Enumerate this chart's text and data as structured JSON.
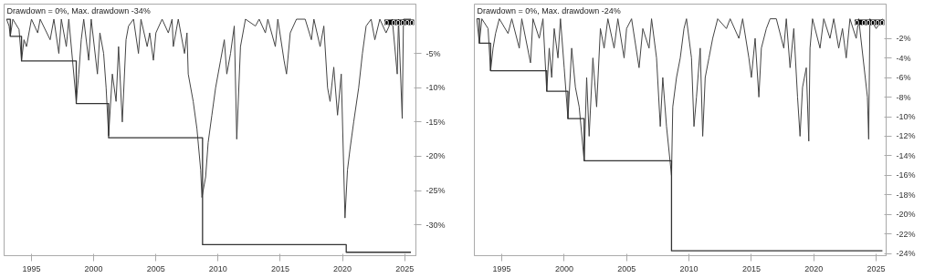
{
  "chart_data": [
    {
      "type": "line",
      "title": "Drawdown = 0%, Max. drawdown -34%",
      "xlim": [
        1992.8,
        2025.9
      ],
      "ylim": [
        -34.5,
        2.2
      ],
      "xticks": [
        1995,
        2000,
        2005,
        2010,
        2015,
        2020,
        2025
      ],
      "yticks": [
        {
          "value": -5,
          "label": "-5%"
        },
        {
          "value": -10,
          "label": "-10%"
        },
        {
          "value": -15,
          "label": "-15%"
        },
        {
          "value": -20,
          "label": "-20%"
        },
        {
          "value": -25,
          "label": "-25%"
        },
        {
          "value": -30,
          "label": "-30%"
        }
      ],
      "grid": false,
      "annotations": [
        "0.00000"
      ],
      "series": [
        {
          "color": "#444444",
          "x": [
            1993.0,
            1993.2,
            1993.3,
            1993.5,
            1994.0,
            1994.2,
            1994.4,
            1994.6,
            1995.0,
            1995.5,
            1995.7,
            1996.5,
            1996.8,
            1997.2,
            1997.4,
            1997.8,
            1998.0,
            1998.6,
            1998.8,
            1999.0,
            1999.2,
            1999.6,
            1999.8,
            2000.3,
            2000.5,
            2000.8,
            2001.0,
            2001.2,
            2001.5,
            2001.8,
            2002.0,
            2002.3,
            2002.6,
            2002.8,
            2003.2,
            2003.6,
            2003.8,
            2004.3,
            2004.5,
            2004.8,
            2005.0,
            2005.5,
            2006.0,
            2006.3,
            2006.4,
            2006.8,
            2007.3,
            2007.5,
            2007.6,
            2008.0,
            2008.3,
            2008.6,
            2008.7,
            2009.0,
            2009.2,
            2009.5,
            2009.8,
            2010.2,
            2010.5,
            2010.7,
            2011.0,
            2011.3,
            2011.5,
            2011.8,
            2012.2,
            2013.0,
            2013.3,
            2013.8,
            2014.0,
            2014.6,
            2014.8,
            2015.3,
            2015.5,
            2015.8,
            2016.3,
            2017.0,
            2017.5,
            2017.7,
            2018.2,
            2018.5,
            2018.8,
            2019.0,
            2019.3,
            2019.6,
            2019.9,
            2020.2,
            2020.4,
            2020.6,
            2020.9,
            2021.3,
            2021.6,
            2021.9,
            2022.3,
            2022.6,
            2023.0,
            2023.5,
            2024.0,
            2024.4,
            2024.5,
            2024.8,
            2024.9,
            2025.5
          ],
          "values": [
            0,
            -1,
            -2.5,
            0,
            -1.5,
            -6,
            -3,
            -4,
            0,
            -2,
            0,
            -3,
            0,
            -5,
            0,
            -4,
            0,
            -12,
            -8,
            -3,
            0,
            -6,
            0,
            -8,
            -2,
            -5,
            -10,
            -17,
            -8,
            -12,
            -4,
            -15,
            -3,
            -1,
            0,
            -5,
            0,
            -4,
            -2,
            -6,
            -2,
            0,
            -2,
            0,
            -4,
            0,
            -5,
            -2,
            -8,
            -12,
            -16,
            -22,
            -26,
            -23,
            -18,
            -14,
            -10,
            -6,
            -3,
            -8,
            -5,
            -1,
            -17.5,
            -4,
            0,
            -1,
            0,
            -2,
            0,
            -4,
            0,
            -6,
            -8,
            -2,
            0,
            0,
            -3,
            0,
            -4,
            -1,
            -10,
            -12,
            -7,
            -14,
            -8,
            -29,
            -22,
            -19,
            -15,
            -10,
            -5,
            -1,
            0,
            -3,
            0,
            -2,
            0,
            -8,
            0,
            -14.5,
            0,
            0
          ]
        },
        {
          "type": "step",
          "color": "#333333",
          "x": [
            1993.0,
            1993.3,
            1994.2,
            1998.6,
            2001.2,
            2008.75,
            2020.3,
            2025.5
          ],
          "values": [
            0,
            -2.5,
            -6.1,
            -12.3,
            -17.3,
            -32.9,
            -34,
            -34
          ]
        }
      ]
    },
    {
      "type": "line",
      "title": "Drawdown = 0%, Max. drawdown -24%",
      "xlim": [
        1992.8,
        2025.8
      ],
      "ylim": [
        -24.2,
        1.5
      ],
      "xticks": [
        1995,
        2000,
        2005,
        2010,
        2015,
        2020,
        2025
      ],
      "yticks": [
        {
          "value": -2,
          "label": "-2%"
        },
        {
          "value": -4,
          "label": "-4%"
        },
        {
          "value": -6,
          "label": "-6%"
        },
        {
          "value": -8,
          "label": "-8%"
        },
        {
          "value": -10,
          "label": "-10%"
        },
        {
          "value": -12,
          "label": "-12%"
        },
        {
          "value": -14,
          "label": "-14%"
        },
        {
          "value": -16,
          "label": "-16%"
        },
        {
          "value": -18,
          "label": "-18%"
        },
        {
          "value": -20,
          "label": "-20%"
        },
        {
          "value": -22,
          "label": "-22%"
        },
        {
          "value": -24,
          "label": "-24%"
        }
      ],
      "grid": false,
      "annotations": [
        "0.00000"
      ],
      "series": [
        {
          "color": "#444444",
          "x": [
            1993.0,
            1993.2,
            1993.4,
            1993.9,
            1994.1,
            1994.3,
            1994.5,
            1994.8,
            1995.5,
            1995.8,
            1996.4,
            1996.6,
            1997.3,
            1997.5,
            1998.0,
            1998.3,
            1998.6,
            1998.8,
            1999.0,
            1999.2,
            1999.5,
            1999.7,
            2000.0,
            2000.3,
            2000.6,
            2000.9,
            2001.2,
            2001.6,
            2001.8,
            2002.0,
            2002.3,
            2002.6,
            2002.9,
            2003.2,
            2003.5,
            2004.0,
            2004.3,
            2004.8,
            2005.0,
            2005.4,
            2006.0,
            2006.3,
            2006.8,
            2007.0,
            2007.4,
            2007.7,
            2007.9,
            2008.2,
            2008.6,
            2008.7,
            2009.0,
            2009.3,
            2009.6,
            2009.8,
            2010.2,
            2010.4,
            2010.6,
            2010.9,
            2011.1,
            2011.3,
            2011.6,
            2011.9,
            2012.3,
            2013.0,
            2013.3,
            2014.0,
            2014.3,
            2014.8,
            2015.0,
            2015.3,
            2015.6,
            2015.8,
            2016.2,
            2016.5,
            2017.0,
            2017.6,
            2017.8,
            2018.1,
            2018.4,
            2018.7,
            2018.9,
            2019.1,
            2019.4,
            2019.6,
            2019.7,
            2019.9,
            2020.5,
            2020.8,
            2021.3,
            2021.6,
            2022.0,
            2022.3,
            2022.6,
            2022.9,
            2023.4,
            2023.6,
            2024.3,
            2024.4,
            2024.5,
            2025.0,
            2025.5
          ],
          "values": [
            0,
            -2.5,
            0,
            -1,
            -5.3,
            -3,
            -1.5,
            0,
            -1.5,
            0,
            -3,
            0,
            -4.5,
            0,
            -2,
            0,
            -7.4,
            -3,
            -6,
            -1,
            -4,
            0,
            -5,
            -10.2,
            -3,
            -7,
            -9,
            -14.5,
            -6,
            -12,
            -4,
            -9,
            -1,
            -3,
            0,
            -3,
            0,
            -4,
            -1,
            0,
            -5,
            -1,
            -3,
            0,
            -4,
            -11,
            -6,
            -11,
            -16,
            -9,
            -6,
            -4,
            -1,
            0,
            -4,
            -11,
            -8,
            -3,
            -12,
            -6,
            -4,
            -2,
            0,
            -1,
            0,
            -2,
            0,
            -4,
            -6,
            -2,
            -8,
            -3,
            -1,
            0,
            0,
            -3,
            0,
            -5,
            -1,
            -8,
            -12,
            -7,
            -5,
            -12.5,
            -3,
            0,
            -3,
            0,
            -2,
            0,
            -3,
            -1,
            -4,
            0,
            -2,
            0,
            -8,
            -12.3,
            0,
            -1,
            0
          ]
        },
        {
          "type": "step",
          "color": "#333333",
          "x": [
            1993.0,
            1993.2,
            1994.1,
            1998.6,
            2000.3,
            2001.6,
            2008.6,
            2025.5
          ],
          "values": [
            0,
            -2.5,
            -5.3,
            -7.4,
            -10.2,
            -14.5,
            -23.7,
            -23.7
          ]
        }
      ]
    }
  ]
}
